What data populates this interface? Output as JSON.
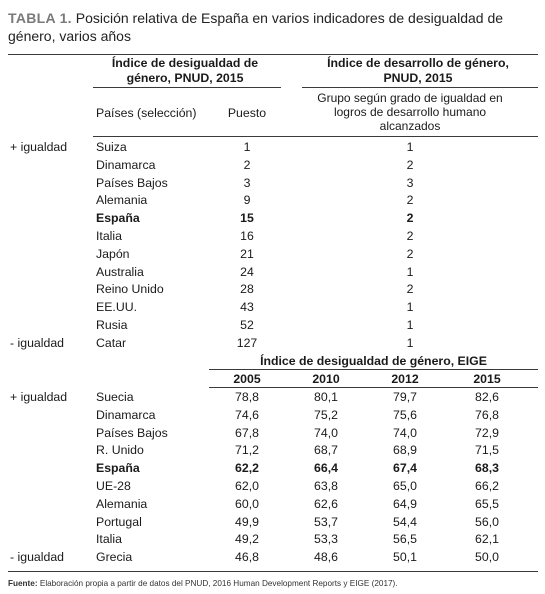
{
  "caption": {
    "number": "TABLA 1.",
    "text": " Posición relativa de España en varios indicadores de desigualdad de género, varios años"
  },
  "section1": {
    "header_left": "Índice de desigualdad de género, PNUD, 2015",
    "header_right": "Índice de desarrollo de género, PNUD, 2015",
    "col_country": "Países (selección)",
    "col_rank": "Puesto",
    "col_group": "Grupo según grado de igualdad en logros de desarrollo humano alcanzados",
    "rows": [
      {
        "side": "+ igualdad",
        "country": "Suiza",
        "rank": "1",
        "group": "1"
      },
      {
        "side": "",
        "country": "Dinamarca",
        "rank": "2",
        "group": "2"
      },
      {
        "side": "",
        "country": "Países Bajos",
        "rank": "3",
        "group": "3"
      },
      {
        "side": "",
        "country": "Alemania",
        "rank": "9",
        "group": "2"
      },
      {
        "side": "",
        "country": "España",
        "rank": "15",
        "group": "2",
        "bold": true
      },
      {
        "side": "",
        "country": "Italia",
        "rank": "16",
        "group": "2"
      },
      {
        "side": "",
        "country": "Japón",
        "rank": "21",
        "group": "2"
      },
      {
        "side": "",
        "country": "Australia",
        "rank": "24",
        "group": "1"
      },
      {
        "side": "",
        "country": "Reino Unido",
        "rank": "28",
        "group": "2"
      },
      {
        "side": "",
        "country": "EE.UU.",
        "rank": "43",
        "group": "1"
      },
      {
        "side": "",
        "country": "Rusia",
        "rank": "52",
        "group": "1"
      },
      {
        "side": "- igualdad",
        "country": "Catar",
        "rank": "127",
        "group": "1"
      }
    ]
  },
  "section2": {
    "header": "Índice de desigualdad de género, EIGE",
    "years": [
      "2005",
      "2010",
      "2012",
      "2015"
    ],
    "rows": [
      {
        "side": "+ igualdad",
        "country": "Suecia",
        "values": [
          "78,8",
          "80,1",
          "79,7",
          "82,6"
        ]
      },
      {
        "side": "",
        "country": "Dinamarca",
        "values": [
          "74,6",
          "75,2",
          "75,6",
          "76,8"
        ]
      },
      {
        "side": "",
        "country": "Países Bajos",
        "values": [
          "67,8",
          "74,0",
          "74,0",
          "72,9"
        ]
      },
      {
        "side": "",
        "country": "R. Unido",
        "values": [
          "71,2",
          "68,7",
          "68,9",
          "71,5"
        ]
      },
      {
        "side": "",
        "country": "España",
        "values": [
          "62,2",
          "66,4",
          "67,4",
          "68,3"
        ],
        "bold": true
      },
      {
        "side": "",
        "country": "UE-28",
        "values": [
          "62,0",
          "63,8",
          "65,0",
          "66,2"
        ]
      },
      {
        "side": "",
        "country": "Alemania",
        "values": [
          "60,0",
          "62,6",
          "64,9",
          "65,5"
        ]
      },
      {
        "side": "",
        "country": "Portugal",
        "values": [
          "49,9",
          "53,7",
          "54,4",
          "56,0"
        ]
      },
      {
        "side": "",
        "country": "Italia",
        "values": [
          "49,2",
          "53,3",
          "56,5",
          "62,1"
        ]
      },
      {
        "side": "- igualdad",
        "country": "Grecia",
        "values": [
          "46,8",
          "48,6",
          "50,1",
          "50,0"
        ]
      }
    ]
  },
  "footer": {
    "label": "Fuente:",
    "text": " Elaboración propia a partir de datos del PNUD, 2016 Human Development Reports y EIGE (2017)."
  }
}
